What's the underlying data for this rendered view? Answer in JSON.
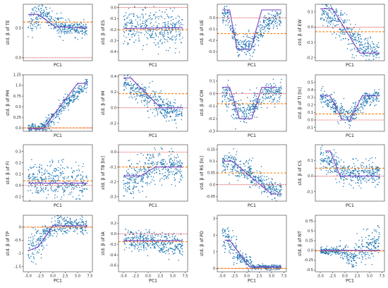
{
  "figure": {
    "description_colors": {
      "points": "#1f77b4",
      "trend_line": "#7b3fbf",
      "mean_line": "#ff7f0e",
      "zero_line": "#d62728"
    }
  },
  "chart_data": [
    {
      "type": "scatter",
      "xlabel": "PC1",
      "ylabel": "std. β of TE",
      "xlim": [
        -6,
        8
      ],
      "ylim": [
        -0.05,
        0.9
      ],
      "yticks": [
        0.0,
        0.5
      ],
      "xticks": [],
      "segments": [
        [
          -5,
          0.55,
          -2.5,
          0.78,
          0.12
        ],
        [
          -2.5,
          0.78,
          2,
          0.5,
          0.08
        ],
        [
          2,
          0.5,
          7,
          0.47,
          0.06
        ]
      ],
      "trend": [
        [
          -5,
          0.73
        ],
        [
          -3,
          0.73
        ],
        [
          0.5,
          0.52
        ],
        [
          7,
          0.5
        ]
      ],
      "mean": 0.6,
      "zero": 0.0,
      "count": 380
    },
    {
      "type": "scatter",
      "xlabel": "PC1",
      "ylabel": "std. β of ES",
      "xlim": [
        -6,
        8
      ],
      "ylim": [
        -0.48,
        0.03
      ],
      "yticks": [
        -0.4,
        -0.3,
        -0.2,
        -0.1,
        0.0
      ],
      "xticks": [],
      "segments": [
        [
          -5,
          -0.18,
          7,
          -0.2,
          0.08
        ]
      ],
      "trend": [
        [
          -5,
          -0.19
        ],
        [
          7,
          -0.18
        ]
      ],
      "mean": -0.2,
      "zero": 0.0,
      "count": 380
    },
    {
      "type": "scatter",
      "xlabel": "PC1",
      "ylabel": "std. β of UE",
      "xlim": [
        -6,
        8
      ],
      "ylim": [
        -0.38,
        0.12
      ],
      "yticks": [
        -0.3,
        -0.2,
        -0.1,
        0.0
      ],
      "xticks": [],
      "segments": [
        [
          -5,
          0.03,
          -3.5,
          0.0,
          0.04
        ],
        [
          -3.5,
          -0.05,
          -1.5,
          -0.28,
          0.05
        ],
        [
          -1.5,
          -0.28,
          1.5,
          -0.2,
          0.05
        ],
        [
          1.5,
          -0.2,
          4,
          -0.05,
          0.05
        ],
        [
          4,
          -0.05,
          7,
          0.0,
          0.04
        ]
      ],
      "trend": [
        [
          -5,
          0.07
        ],
        [
          -3.5,
          0.07
        ],
        [
          -2,
          -0.28
        ],
        [
          0.8,
          -0.28
        ],
        [
          3,
          0.07
        ],
        [
          7,
          0.07
        ]
      ],
      "mean": -0.14,
      "zero": 0.0,
      "count": 380
    },
    {
      "type": "scatter",
      "xlabel": "PC1",
      "ylabel": "std. β of EW",
      "xlim": [
        -6,
        8
      ],
      "ylim": [
        -0.22,
        0.15
      ],
      "yticks": [
        -0.2,
        -0.1,
        0.0,
        0.1
      ],
      "xticks": [],
      "segments": [
        [
          -5,
          0.1,
          -2,
          0.05,
          0.04
        ],
        [
          -2,
          0.05,
          3,
          -0.12,
          0.05
        ],
        [
          3,
          -0.12,
          7,
          -0.17,
          0.04
        ]
      ],
      "trend": [
        [
          -5,
          0.12
        ],
        [
          -2.5,
          0.12
        ],
        [
          3,
          -0.17
        ],
        [
          7,
          -0.17
        ]
      ],
      "mean": -0.03,
      "zero": 0.0,
      "count": 380
    },
    {
      "type": "scatter",
      "xlabel": "PC1",
      "ylabel": "std. β of PM",
      "xlim": [
        -6,
        8
      ],
      "ylim": [
        -0.08,
        1.25
      ],
      "yticks": [
        0.0,
        0.25,
        0.5,
        0.75,
        1.0,
        1.25
      ],
      "xticks": [],
      "segments": [
        [
          -5,
          0.0,
          -1.5,
          0.02,
          0.05
        ],
        [
          -1.5,
          0.05,
          3,
          0.6,
          0.1
        ],
        [
          3,
          0.6,
          7,
          1.05,
          0.08
        ]
      ],
      "trend": [
        [
          -5,
          -0.02
        ],
        [
          -2,
          -0.02
        ],
        [
          5,
          1.05
        ],
        [
          7,
          1.05
        ]
      ],
      "mean": 0.0,
      "zero": 0.0,
      "count": 380
    },
    {
      "type": "scatter",
      "xlabel": "PC1",
      "ylabel": "std. β of IM",
      "xlim": [
        -6,
        8
      ],
      "ylim": [
        -0.3,
        0.42
      ],
      "yticks": [
        -0.2,
        0.0,
        0.2,
        0.4
      ],
      "xticks": [],
      "segments": [
        [
          -5,
          0.32,
          -2,
          0.2,
          0.08
        ],
        [
          -2,
          0.2,
          3,
          0.0,
          0.08
        ],
        [
          3,
          0.0,
          7,
          -0.08,
          0.06
        ]
      ],
      "trend": [
        [
          -5,
          0.38
        ],
        [
          -3.5,
          0.38
        ],
        [
          2.5,
          0.0
        ],
        [
          7,
          0.0
        ]
      ],
      "mean": 0.18,
      "zero": 0.0,
      "count": 380
    },
    {
      "type": "scatter",
      "xlabel": "PC1",
      "ylabel": "std. β of CM",
      "xlim": [
        -6,
        8
      ],
      "ylim": [
        -0.3,
        0.15
      ],
      "yticks": [
        -0.3,
        -0.2,
        -0.1,
        0.0,
        0.1
      ],
      "xticks": [],
      "segments": [
        [
          -5,
          0.03,
          -3,
          -0.05,
          0.05
        ],
        [
          -3,
          -0.1,
          0,
          -0.15,
          0.05
        ],
        [
          0,
          -0.12,
          3,
          -0.05,
          0.05
        ],
        [
          3,
          -0.02,
          7,
          0.03,
          0.04
        ]
      ],
      "trend": [
        [
          -5,
          0.05
        ],
        [
          -3.5,
          0.05
        ],
        [
          -1.5,
          -0.2
        ],
        [
          1,
          -0.2
        ],
        [
          3,
          0.05
        ],
        [
          6,
          0.05
        ]
      ],
      "mean": -0.08,
      "zero": 0.0,
      "count": 380
    },
    {
      "type": "scatter",
      "xlabel": "PC1",
      "ylabel": "std. β of TI [ln]",
      "xlim": [
        -6,
        8
      ],
      "ylim": [
        -0.15,
        0.6
      ],
      "yticks": [
        -0.1,
        0.0,
        0.1,
        0.2,
        0.3,
        0.4,
        0.5
      ],
      "xticks": [],
      "segments": [
        [
          -5,
          0.32,
          -2,
          0.2,
          0.06
        ],
        [
          -2,
          0.15,
          1,
          0.02,
          0.06
        ],
        [
          1,
          0.05,
          4,
          0.25,
          0.06
        ],
        [
          4,
          0.28,
          7,
          0.32,
          0.05
        ]
      ],
      "trend": [
        [
          -5,
          0.32
        ],
        [
          -3,
          0.32
        ],
        [
          -0.5,
          0.0
        ],
        [
          1,
          0.0
        ],
        [
          3.5,
          0.32
        ],
        [
          7,
          0.32
        ]
      ],
      "mean": 0.08,
      "zero": 0.0,
      "count": 380
    },
    {
      "type": "scatter",
      "xlabel": "PC1",
      "ylabel": "std. β of FI",
      "xlim": [
        -6,
        8
      ],
      "ylim": [
        -0.14,
        0.36
      ],
      "yticks": [
        -0.1,
        0.0,
        0.1,
        0.2,
        0.3
      ],
      "xticks": [],
      "segments": [
        [
          -5,
          0.05,
          7,
          0.02,
          0.08
        ]
      ],
      "trend": [
        [
          -5,
          0.02
        ],
        [
          7,
          0.02
        ]
      ],
      "mean": 0.04,
      "zero": 0.0,
      "count": 380
    },
    {
      "type": "scatter",
      "xlabel": "PC1",
      "ylabel": "std. β of TB [ln]",
      "xlim": [
        -6,
        8
      ],
      "ylim": [
        -0.33,
        0.05
      ],
      "yticks": [
        -0.3,
        -0.2,
        -0.1,
        0.0
      ],
      "xticks": [],
      "segments": [
        [
          -5,
          -0.22,
          -1,
          -0.15,
          0.06
        ],
        [
          -1,
          -0.12,
          3,
          -0.08,
          0.06
        ],
        [
          3,
          -0.1,
          7,
          -0.1,
          0.05
        ]
      ],
      "trend": [
        [
          -5,
          -0.16
        ],
        [
          -1.5,
          -0.16
        ],
        [
          1.5,
          -0.1
        ],
        [
          7,
          -0.1
        ]
      ],
      "mean": -0.1,
      "zero": 0.0,
      "count": 380
    },
    {
      "type": "scatter",
      "xlabel": "PC1",
      "ylabel": "std. β of RS [ln]",
      "xlim": [
        -6,
        8
      ],
      "ylim": [
        -0.07,
        0.17
      ],
      "yticks": [
        -0.05,
        0.0,
        0.05,
        0.1,
        0.15
      ],
      "xticks": [],
      "segments": [
        [
          -5,
          0.1,
          -2,
          0.08,
          0.03
        ],
        [
          -2,
          0.07,
          3,
          0.02,
          0.025
        ],
        [
          3,
          0.0,
          7,
          -0.03,
          0.02
        ]
      ],
      "trend": [
        [
          -5,
          0.1
        ],
        [
          -3,
          0.1
        ],
        [
          5,
          -0.04
        ],
        [
          7,
          -0.04
        ]
      ],
      "mean": 0.05,
      "zero": 0.0,
      "count": 380
    },
    {
      "type": "scatter",
      "xlabel": "PC1",
      "ylabel": "std. β of CS",
      "xlim": [
        -6,
        8
      ],
      "ylim": [
        -0.16,
        0.2
      ],
      "yticks": [
        -0.1,
        0.0,
        0.1
      ],
      "xticks": [],
      "segments": [
        [
          -5,
          0.12,
          -1,
          0.04,
          0.04
        ],
        [
          -1,
          0.02,
          7,
          0.02,
          0.035
        ]
      ],
      "trend": [
        [
          -4,
          0.16
        ],
        [
          -3,
          0.16
        ],
        [
          -1,
          0.0
        ],
        [
          7,
          0.0
        ]
      ],
      "mean": 0.05,
      "zero": 0.0,
      "count": 380
    },
    {
      "type": "scatter",
      "xlabel": "PC1",
      "ylabel": "std. β of TP",
      "xlim": [
        -6,
        8
      ],
      "ylim": [
        -1.7,
        0.45
      ],
      "yticks": [
        -1.5,
        -1.0,
        -0.5,
        0.0
      ],
      "xticks": [
        -5.0,
        -2.5,
        0.0,
        2.5,
        5.0,
        7.5
      ],
      "segments": [
        [
          -5,
          -0.8,
          -2,
          -0.5,
          0.3
        ],
        [
          -2,
          -0.3,
          1,
          0.1,
          0.2
        ],
        [
          1,
          0.1,
          7,
          0.05,
          0.15
        ]
      ],
      "trend": [
        [
          -5,
          -0.9
        ],
        [
          -3,
          -0.75
        ],
        [
          0,
          0.05
        ],
        [
          7,
          0.05
        ]
      ],
      "mean": 0.0,
      "zero": 0.0,
      "count": 380
    },
    {
      "type": "scatter",
      "xlabel": "PC1",
      "ylabel": "std. β of IA",
      "xlim": [
        -6,
        8
      ],
      "ylim": [
        -0.72,
        0.35
      ],
      "yticks": [
        -0.6,
        -0.4,
        -0.2,
        0.0,
        0.2
      ],
      "xticks": [
        -5.0,
        -2.5,
        0.0,
        2.5,
        5.0,
        7.5
      ],
      "segments": [
        [
          -5,
          -0.1,
          7,
          -0.22,
          0.1
        ]
      ],
      "trend": [
        [
          -5,
          -0.13
        ],
        [
          7,
          -0.13
        ]
      ],
      "mean": -0.15,
      "zero": 0.0,
      "count": 380
    },
    {
      "type": "scatter",
      "xlabel": "PC1",
      "ylabel": "std. β of PD",
      "xlim": [
        -6,
        8
      ],
      "ylim": [
        -0.2,
        3.2
      ],
      "yticks": [
        0,
        1,
        2,
        3
      ],
      "xticks": [
        -5.0,
        -2.5,
        0.0,
        2.5,
        5.0,
        7.5
      ],
      "segments": [
        [
          -5,
          2.0,
          -2,
          1.0,
          0.4
        ],
        [
          -2,
          0.8,
          1,
          0.2,
          0.2
        ],
        [
          1,
          0.1,
          7,
          0.05,
          0.07
        ]
      ],
      "trend": [
        [
          -4.5,
          1.7
        ],
        [
          -3.5,
          1.7
        ],
        [
          0.5,
          0.1
        ],
        [
          7,
          0.1
        ]
      ],
      "mean": 0.0,
      "zero": 0.0,
      "count": 380
    },
    {
      "type": "scatter",
      "xlabel": "PC1",
      "ylabel": "std. β of NT",
      "xlim": [
        -6,
        8
      ],
      "ylim": [
        -0.55,
        0.9
      ],
      "yticks": [
        -0.5,
        -0.25,
        0.0,
        0.25,
        0.5,
        0.75
      ],
      "xticks": [
        -5.0,
        -2.5,
        0.0,
        2.5,
        5.0,
        7.5
      ],
      "segments": [
        [
          -5,
          0.0,
          -1,
          -0.03,
          0.05
        ],
        [
          -1,
          -0.03,
          2,
          -0.25,
          0.12
        ],
        [
          2,
          -0.1,
          7,
          0.3,
          0.2
        ]
      ],
      "trend": [
        [
          -5,
          0.0
        ],
        [
          7,
          0.0
        ]
      ],
      "mean": -0.02,
      "zero": 0.0,
      "count": 380
    }
  ]
}
